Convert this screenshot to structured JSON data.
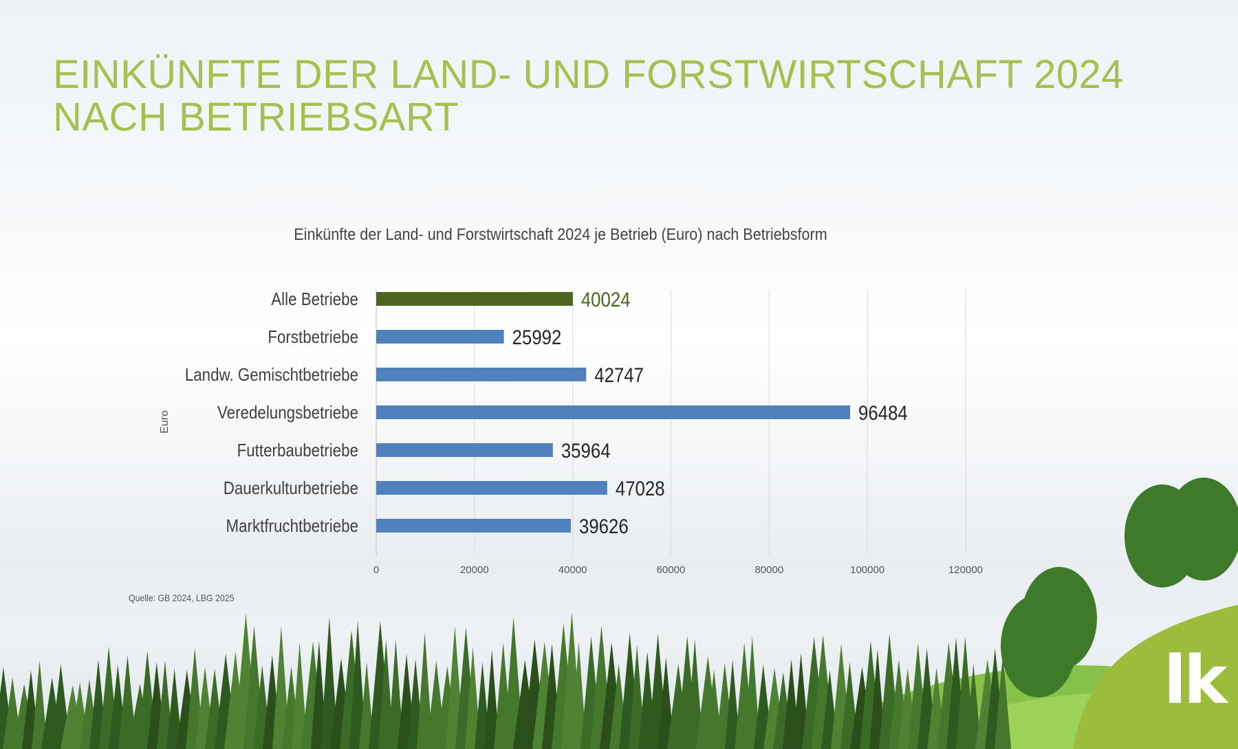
{
  "slide": {
    "title_line1": "EINKÜNFTE DER LAND- UND FORSTWIRTSCHAFT 2024",
    "title_line2": "NACH BETRIEBSART",
    "source": "Quelle: GB 2024, LBG 2025",
    "logo": "lk"
  },
  "colors": {
    "title": "#a6bf4e",
    "bar_highlight": "#4e6421",
    "bar_default": "#4f81bd",
    "logo_green": "#9cbd3c"
  },
  "chart_data": {
    "type": "bar",
    "orientation": "horizontal",
    "title": "Einkünfte der Land- und Forstwirtschaft 2024 je Betrieb (Euro) nach Betriebsform",
    "ylabel": "Euro",
    "xlabel": "",
    "categories": [
      "Alle Betriebe",
      "Forstbetriebe",
      "Landw. Gemischtbetriebe",
      "Veredelungsbetriebe",
      "Futterbaubetriebe",
      "Dauerkulturbetriebe",
      "Marktfruchtbetriebe"
    ],
    "values": [
      40024,
      25992,
      42747,
      96484,
      35964,
      47028,
      39626
    ],
    "highlight_index": 0,
    "xlim": [
      0,
      120000
    ],
    "xticks": [
      0,
      20000,
      40000,
      60000,
      80000,
      100000,
      120000
    ],
    "grid": true,
    "legend": "none"
  }
}
